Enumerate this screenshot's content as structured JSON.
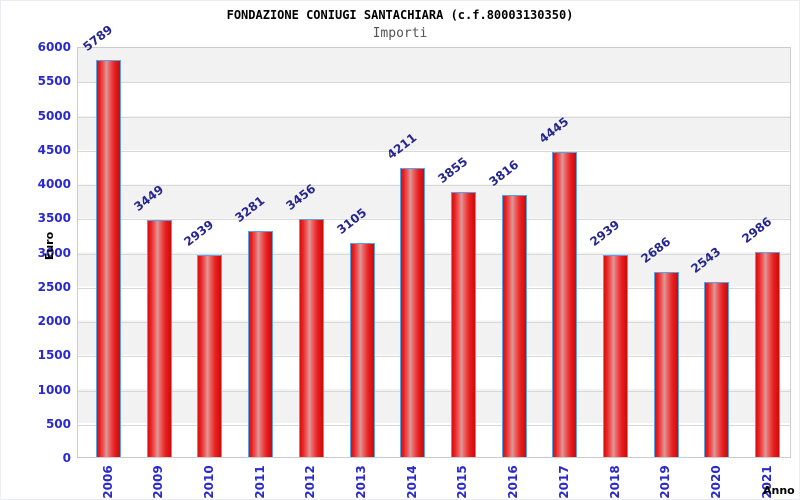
{
  "header": {
    "title": "FONDAZIONE CONIUGI SANTACHIARA (c.f.80003130350)",
    "subtitle": "Importi"
  },
  "chart_data": {
    "type": "bar",
    "title": "FONDAZIONE CONIUGI SANTACHIARA (c.f.80003130350)",
    "subtitle": "Importi",
    "categories": [
      "2006",
      "2009",
      "2010",
      "2011",
      "2012",
      "2013",
      "2014",
      "2015",
      "2016",
      "2017",
      "2018",
      "2019",
      "2020",
      "2021"
    ],
    "values": [
      5789,
      3449,
      2939,
      3281,
      3456,
      3105,
      4211,
      3855,
      3816,
      4445,
      2939,
      2686,
      2543,
      2986
    ],
    "xlabel": "Anno",
    "ylabel": "Euro",
    "ylim": [
      0,
      6000
    ],
    "ytick_step": 500,
    "grid": true,
    "legend_position": "none",
    "band_rows": true,
    "colors": {
      "bar_fill": "#e02020",
      "bar_highlight": "#d89c9c",
      "bar_border": "#58a2e8",
      "tick_label": "#2929cc",
      "value_label": "#26268e",
      "band_gray": "#f2f2f2",
      "gridline": "#d8d8d8",
      "plot_border": "#cccccc",
      "title_color": "#000000",
      "subtitle_color": "#555555"
    }
  }
}
